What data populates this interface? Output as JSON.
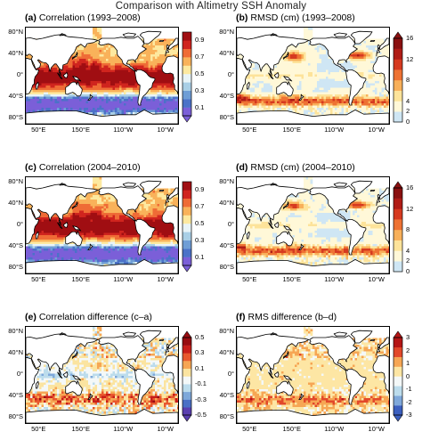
{
  "figure": {
    "title": "Comparison with Altimetry SSH Anomaly"
  },
  "axes": {
    "lat_labels": [
      "80°N",
      "40°N",
      "0°",
      "40°S",
      "80°S"
    ],
    "lat_values": [
      80,
      40,
      0,
      -40,
      -80
    ],
    "lon_labels": [
      "50°E",
      "150°E",
      "110°W",
      "10°W"
    ],
    "lon_values": [
      50,
      150,
      250,
      350
    ]
  },
  "panels": [
    {
      "id": "a",
      "letter": "(a)",
      "title": "Correlation  (1993–2008)",
      "scale": "correlation",
      "colorbar": {
        "extend": "min",
        "ticks": [
          "0.1",
          "0.3",
          "0.5",
          "0.7",
          "0.9"
        ],
        "colors": [
          "#7b5fd8",
          "#4b72c8",
          "#6f9ed6",
          "#a9cfe6",
          "#e8f4f8",
          "#fde9a0",
          "#f9b25a",
          "#ef6b36",
          "#d0241e",
          "#a00e12"
        ]
      }
    },
    {
      "id": "b",
      "letter": "(b)",
      "title": "RMSD (cm)  (1993–2008)",
      "scale": "rmsd",
      "colorbar": {
        "extend": "max",
        "ticks": [
          "0",
          "2",
          "4",
          "8",
          "12",
          "16"
        ],
        "colors": [
          "#cfe6f4",
          "#fff8d8",
          "#fde39a",
          "#f8b05a",
          "#ee7233",
          "#d63a20",
          "#b01c16",
          "#8a1010"
        ]
      }
    },
    {
      "id": "c",
      "letter": "(c)",
      "title": "Correlation  (2004–2010)",
      "scale": "correlation",
      "colorbar": {
        "extend": "min",
        "ticks": [
          "0.1",
          "0.3",
          "0.5",
          "0.7",
          "0.9"
        ],
        "colors": [
          "#7b5fd8",
          "#4b72c8",
          "#6f9ed6",
          "#a9cfe6",
          "#e8f4f8",
          "#fde9a0",
          "#f9b25a",
          "#ef6b36",
          "#d0241e",
          "#a00e12"
        ]
      }
    },
    {
      "id": "d",
      "letter": "(d)",
      "title": "RMSD (cm)  (2004–2010)",
      "scale": "rmsd",
      "colorbar": {
        "extend": "max",
        "ticks": [
          "0",
          "2",
          "4",
          "8",
          "12",
          "16"
        ],
        "colors": [
          "#cfe6f4",
          "#fff8d8",
          "#fde39a",
          "#f8b05a",
          "#ee7233",
          "#d63a20",
          "#b01c16",
          "#8a1010"
        ]
      }
    },
    {
      "id": "e",
      "letter": "(e)",
      "title": "Correlation difference  (c–a)",
      "scale": "corrdiff",
      "colorbar": {
        "extend": "both",
        "ticks": [
          "-0.5",
          "-0.3",
          "-0.1",
          "0.1",
          "0.3",
          "0.5"
        ],
        "colors": [
          "#5a3fb0",
          "#4a70c6",
          "#7ea8da",
          "#bcdcec",
          "#f4f8f8",
          "#fbe4a0",
          "#f6a654",
          "#e8582e",
          "#c81e1a",
          "#980c10"
        ]
      }
    },
    {
      "id": "f",
      "letter": "(f)",
      "title": "RMS difference  (b–d)",
      "scale": "rmsdiff",
      "colorbar": {
        "extend": "both",
        "ticks": [
          "-3",
          "-2",
          "-1",
          "0",
          "1",
          "2",
          "3"
        ],
        "colors": [
          "#3b5fbf",
          "#7fa8da",
          "#bcdcec",
          "#f4f8f8",
          "#fde6a4",
          "#f6a654",
          "#e2482a",
          "#b51616"
        ]
      }
    }
  ]
}
